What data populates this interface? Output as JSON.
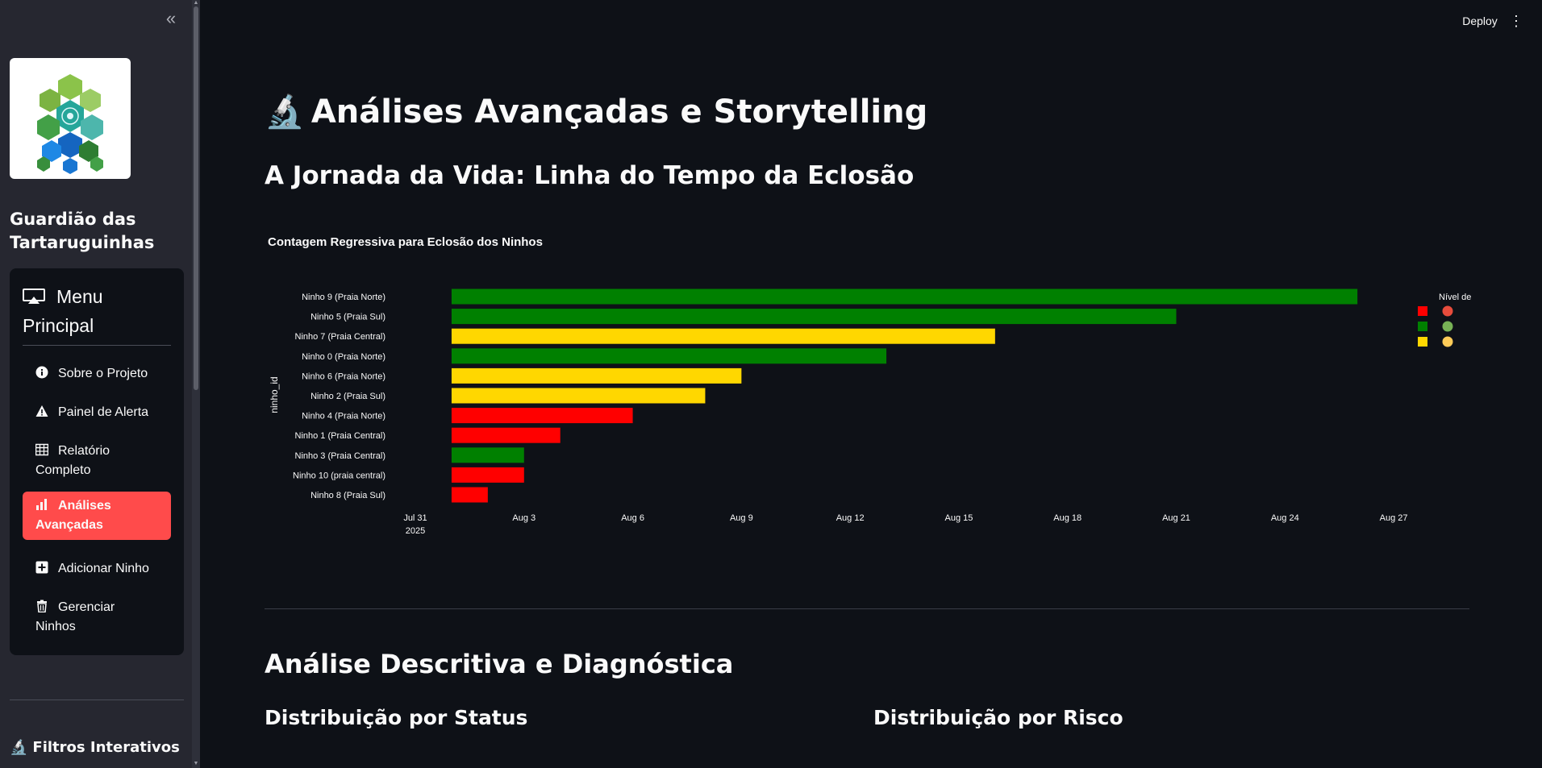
{
  "sidebar": {
    "collapse_icon": "double-chevron-left-icon",
    "app_title": "Guardião das Tartaruguinhas",
    "menu_title": "Menu Principal",
    "menu_icon": "airplay-icon",
    "items": [
      {
        "label": "Sobre o Projeto",
        "icon": "info-icon",
        "active": false
      },
      {
        "label": "Painel de Alerta",
        "icon": "warning-icon",
        "active": false
      },
      {
        "label": "Relatório Completo",
        "icon": "table-icon",
        "active": false
      },
      {
        "label": "Análises Avançadas",
        "icon": "bar-chart-icon",
        "active": true
      },
      {
        "label": "Adicionar Ninho",
        "icon": "plus-square-icon",
        "active": false
      },
      {
        "label": "Gerenciar Ninhos",
        "icon": "trash-icon",
        "active": false
      }
    ],
    "filters_title": "Filtros Interativos",
    "filters_icon": "🔬",
    "active_color": "#ff4b4b"
  },
  "header": {
    "deploy_label": "Deploy",
    "kebab_icon": "⋮"
  },
  "main": {
    "title": "Análises Avançadas e Storytelling",
    "title_icon": "🔬",
    "section1_title": "A Jornada da Vida: Linha do Tempo da Eclosão",
    "section2_title": "Análise Descritiva e Diagnóstica",
    "sub_status_title": "Distribuição por Status",
    "sub_risk_title": "Distribuição por Risco"
  },
  "chart_data": {
    "type": "bar",
    "orientation": "horizontal",
    "title": "Contagem Regressiva para Eclosão dos Ninhos",
    "ylabel": "ninho_id",
    "xlabel": "",
    "x_axis_type": "date",
    "xlim": [
      "2025-07-31",
      "2025-08-28"
    ],
    "x_ticks": [
      "2025-07-31",
      "2025-08-03",
      "2025-08-06",
      "2025-08-09",
      "2025-08-12",
      "2025-08-15",
      "2025-08-18",
      "2025-08-21",
      "2025-08-24",
      "2025-08-27"
    ],
    "x_tick_labels": [
      "Jul 31",
      "Aug 3",
      "Aug 6",
      "Aug 9",
      "Aug 12",
      "Aug 15",
      "Aug 18",
      "Aug 21",
      "Aug 24",
      "Aug 27"
    ],
    "x_tick_year_label": "2025",
    "grid": false,
    "categories": [
      "Ninho 9 (Praia Norte)",
      "Ninho 5 (Praia Sul)",
      "Ninho 7 (Praia Central)",
      "Ninho 0 (Praia Norte)",
      "Ninho 6 (Praia Norte)",
      "Ninho 2 (Praia Sul)",
      "Ninho 4 (Praia Norte)",
      "Ninho 1 (Praia Central)",
      "Ninho 3 (Praia Central)",
      "Ninho 10 (praia central)",
      "Ninho 8 (Praia Sul)"
    ],
    "start": "2025-08-01",
    "end": [
      "2025-08-26",
      "2025-08-21",
      "2025-08-16",
      "2025-08-13",
      "2025-08-09",
      "2025-08-08",
      "2025-08-06",
      "2025-08-04",
      "2025-08-03",
      "2025-08-03",
      "2025-08-02"
    ],
    "risk": [
      "green",
      "green",
      "yellow",
      "green",
      "yellow",
      "yellow",
      "red",
      "red",
      "green",
      "red",
      "red"
    ],
    "legend": {
      "title": "Nível de Risco",
      "position": "right",
      "entries": [
        {
          "name": "red",
          "color": "#ff0000",
          "emoji_color": "#e74c3c"
        },
        {
          "name": "green",
          "color": "#008000",
          "emoji_color": "#77b255"
        },
        {
          "name": "yellow",
          "color": "#ffd700",
          "emoji_color": "#fdcb58"
        }
      ]
    },
    "colors": {
      "red": "#ff0000",
      "green": "#008000",
      "yellow": "#ffd700"
    }
  }
}
